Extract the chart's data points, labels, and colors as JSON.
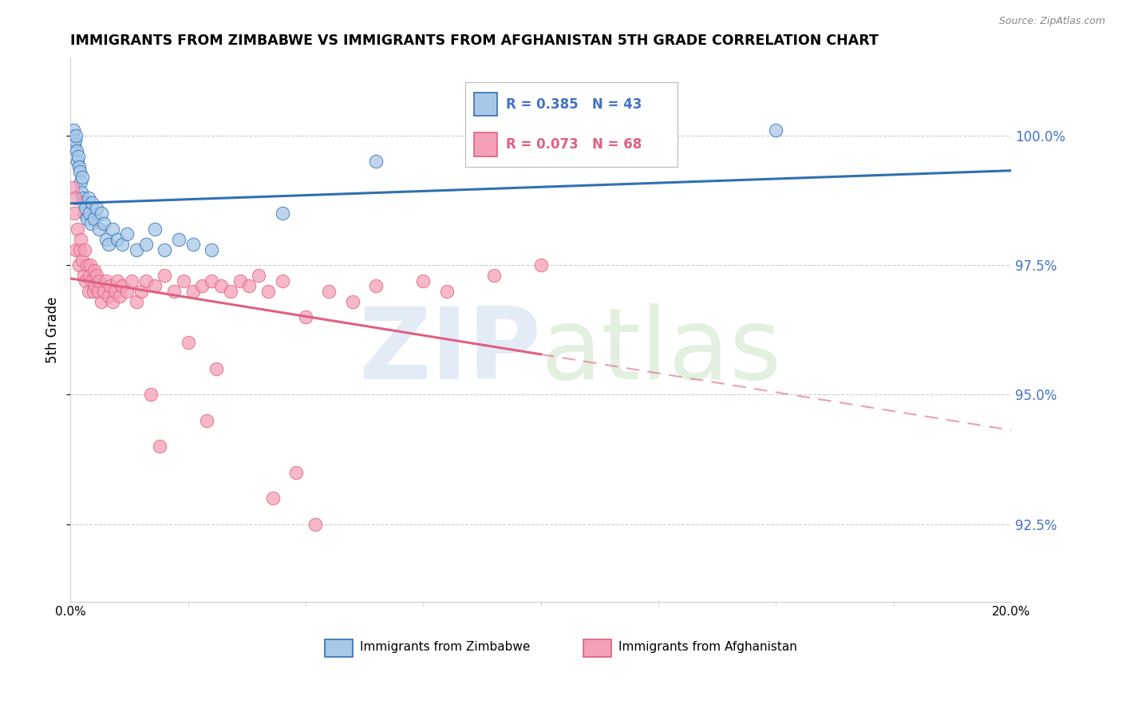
{
  "title": "IMMIGRANTS FROM ZIMBABWE VS IMMIGRANTS FROM AFGHANISTAN 5TH GRADE CORRELATION CHART",
  "source": "Source: ZipAtlas.com",
  "ylabel": "5th Grade",
  "xmin": 0.0,
  "xmax": 20.0,
  "ymin": 91.0,
  "ymax": 101.5,
  "yticks": [
    92.5,
    95.0,
    97.5,
    100.0
  ],
  "ytick_labels": [
    "92.5%",
    "95.0%",
    "97.5%",
    "100.0%"
  ],
  "zimbabwe_color": "#a8c8e8",
  "afghanistan_color": "#f4a0b8",
  "trend_zimbabwe_color": "#3070b0",
  "trend_afghanistan_color": "#e06080",
  "right_axis_color": "#4472c4",
  "watermark_zip_color": "#c8d8f0",
  "watermark_atlas_color": "#c8e0c0",
  "bottom_label_zim": "Immigrants from Zimbabwe",
  "bottom_label_afg": "Immigrants from Afghanistan",
  "zimbabwe_x": [
    0.05,
    0.07,
    0.08,
    0.1,
    0.12,
    0.13,
    0.15,
    0.17,
    0.18,
    0.2,
    0.22,
    0.23,
    0.25,
    0.27,
    0.28,
    0.3,
    0.32,
    0.35,
    0.38,
    0.4,
    0.43,
    0.45,
    0.5,
    0.55,
    0.6,
    0.65,
    0.7,
    0.75,
    0.8,
    0.9,
    1.0,
    1.1,
    1.2,
    1.4,
    1.6,
    1.8,
    2.0,
    2.3,
    2.6,
    3.0,
    4.5,
    6.5,
    15.0
  ],
  "zimbabwe_y": [
    100.0,
    100.1,
    99.8,
    99.9,
    100.0,
    99.7,
    99.5,
    99.6,
    99.4,
    99.3,
    99.1,
    98.9,
    99.2,
    98.8,
    98.7,
    98.5,
    98.6,
    98.4,
    98.8,
    98.5,
    98.3,
    98.7,
    98.4,
    98.6,
    98.2,
    98.5,
    98.3,
    98.0,
    97.9,
    98.2,
    98.0,
    97.9,
    98.1,
    97.8,
    97.9,
    98.2,
    97.8,
    98.0,
    97.9,
    97.8,
    98.5,
    99.5,
    100.1
  ],
  "afghanistan_x": [
    0.05,
    0.08,
    0.1,
    0.12,
    0.15,
    0.18,
    0.2,
    0.22,
    0.25,
    0.28,
    0.3,
    0.32,
    0.35,
    0.38,
    0.4,
    0.42,
    0.45,
    0.48,
    0.5,
    0.52,
    0.55,
    0.58,
    0.6,
    0.65,
    0.7,
    0.75,
    0.8,
    0.85,
    0.9,
    0.95,
    1.0,
    1.05,
    1.1,
    1.2,
    1.3,
    1.4,
    1.5,
    1.6,
    1.8,
    2.0,
    2.2,
    2.4,
    2.6,
    2.8,
    3.0,
    3.2,
    3.4,
    3.6,
    3.8,
    4.0,
    4.2,
    4.5,
    5.0,
    5.5,
    6.0,
    6.5,
    7.5,
    8.0,
    9.0,
    10.0,
    2.5,
    3.1,
    2.9,
    1.7,
    1.9,
    4.8,
    4.3,
    5.2
  ],
  "afghanistan_y": [
    99.0,
    98.5,
    98.8,
    97.8,
    98.2,
    97.5,
    97.8,
    98.0,
    97.6,
    97.3,
    97.8,
    97.2,
    97.5,
    97.0,
    97.3,
    97.5,
    97.2,
    97.0,
    97.4,
    97.1,
    97.3,
    97.0,
    97.2,
    96.8,
    97.0,
    97.2,
    96.9,
    97.1,
    96.8,
    97.0,
    97.2,
    96.9,
    97.1,
    97.0,
    97.2,
    96.8,
    97.0,
    97.2,
    97.1,
    97.3,
    97.0,
    97.2,
    97.0,
    97.1,
    97.2,
    97.1,
    97.0,
    97.2,
    97.1,
    97.3,
    97.0,
    97.2,
    96.5,
    97.0,
    96.8,
    97.1,
    97.2,
    97.0,
    97.3,
    97.5,
    96.0,
    95.5,
    94.5,
    95.0,
    94.0,
    93.5,
    93.0,
    92.5
  ]
}
